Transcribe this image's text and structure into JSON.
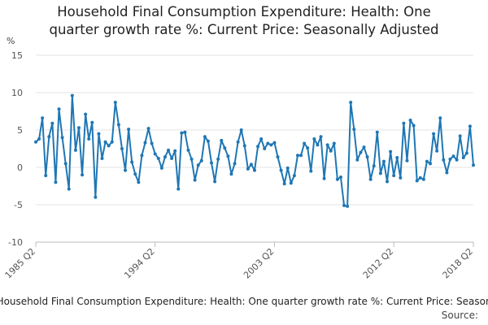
{
  "chart_data": {
    "type": "line",
    "title_lines": [
      "Household Final Consumption Expenditure: Health: One",
      "quarter growth rate %: Current Price: Seasonally Adjusted"
    ],
    "ylabel": "%",
    "ylim": [
      -10,
      15
    ],
    "yticks": [
      15,
      10,
      5,
      0,
      -5,
      -10
    ],
    "xtick_labels": [
      "1985 Q2",
      "1994 Q2",
      "2003 Q2",
      "2012 Q2",
      "2018 Q2"
    ],
    "xtick_indices": [
      0,
      36,
      72,
      108,
      132
    ],
    "grid": true,
    "line_color": "#1f77b4",
    "series": [
      {
        "name": "Household Final Consumption Expenditure: Health: One quarter growth rate %: Current Price: Seasonally Adjusted",
        "start": "1985 Q2",
        "end": "2018 Q2",
        "values": [
          3.4,
          3.8,
          6.6,
          -1.1,
          4.1,
          5.9,
          -2.0,
          7.8,
          4.0,
          0.5,
          -2.9,
          9.6,
          2.3,
          5.3,
          -1.0,
          7.1,
          3.8,
          6.0,
          -4.0,
          4.5,
          1.2,
          3.4,
          2.9,
          3.4,
          8.7,
          5.7,
          2.5,
          -0.4,
          5.1,
          0.7,
          -0.9,
          -2.0,
          1.6,
          3.3,
          5.2,
          3.2,
          1.8,
          1.2,
          -0.1,
          1.4,
          2.3,
          1.2,
          2.2,
          -2.9,
          4.6,
          4.7,
          2.3,
          1.1,
          -1.7,
          0.3,
          0.9,
          4.1,
          3.5,
          0.6,
          -1.9,
          1.1,
          3.6,
          2.6,
          1.5,
          -0.9,
          0.5,
          3.4,
          5.0,
          2.9,
          -0.2,
          0.4,
          -0.4,
          2.8,
          3.8,
          2.5,
          3.2,
          3.0,
          3.3,
          1.4,
          -0.4,
          -2.2,
          -0.1,
          -2.1,
          -1.1,
          1.6,
          1.6,
          3.2,
          2.6,
          -0.5,
          3.8,
          3.0,
          4.1,
          -1.5,
          3.0,
          2.2,
          3.2,
          -1.6,
          -1.3,
          -5.1,
          -5.2,
          8.7,
          5.1,
          1.0,
          2.0,
          2.7,
          1.4,
          -1.6,
          0.2,
          4.7,
          -0.8,
          0.8,
          -1.9,
          2.1,
          -1.1,
          1.3,
          -1.4,
          5.9,
          0.9,
          6.3,
          5.6,
          -1.8,
          -1.4,
          -1.6,
          0.8,
          0.5,
          4.5,
          2.2,
          6.6,
          1.0,
          -0.7,
          1.1,
          1.5,
          1.0,
          4.2,
          1.3,
          1.9,
          5.5,
          0.3
        ]
      }
    ]
  },
  "footer": {
    "series_text": "Household Final Consumption Expenditure: Health: One quarter growth rate %: Current Price: Seasonally Adjusted",
    "source_label": "Source:"
  }
}
